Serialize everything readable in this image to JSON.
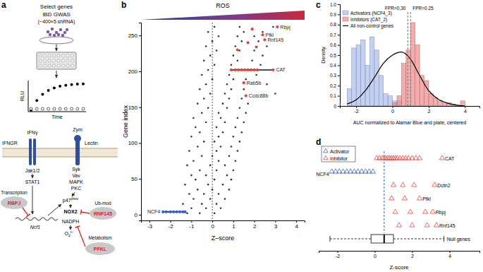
{
  "panel_labels": [
    "a",
    "b",
    "c",
    "d"
  ],
  "diagram": {
    "header": [
      "Select genes",
      "IBD GWAS",
      "(~400×5 shRNA)"
    ],
    "assay": {
      "y_label": "RLU",
      "x_label": "Time"
    },
    "ligands": [
      "IFNγ",
      "Zym"
    ],
    "receptors": [
      "IFNGR",
      "Lectin"
    ],
    "ifn_path": [
      "Jak1/2",
      "STAT1"
    ],
    "zym_path": [
      "Syk",
      "Vav",
      "MAPK",
      "PKC"
    ],
    "p47": {
      "text": "p47",
      "sup": "phox"
    },
    "enzyme": "NOX2",
    "cofactor": "NADPH",
    "product": {
      "text": "O",
      "sub": "2",
      "sup": "•−"
    },
    "gene": "Ncf1",
    "modulators": [
      {
        "process": "Transcription",
        "gene": "RBPJ"
      },
      {
        "process": "Ub-mod",
        "gene": "RNF145"
      },
      {
        "process": "Metabolism",
        "gene": "PFKL"
      }
    ]
  },
  "chart_data": [
    {
      "type": "scatter",
      "title": "ROS",
      "x_label": "Z–score",
      "y_label": "Gene index",
      "xlim": [
        -3.4,
        4.4
      ],
      "xticks": [
        -3,
        -2,
        -1,
        0,
        1,
        2,
        3,
        4
      ],
      "ylim": [
        -8,
        268
      ],
      "yticks": [
        0,
        50,
        100,
        150,
        200,
        250
      ],
      "reference_lines": [
        0
      ],
      "series": [
        {
          "color": "#333333",
          "marker": "circle",
          "x": [
            -1.2,
            -0.6,
            0.1,
            -1.0,
            -0.3,
            0.4,
            -1.4,
            -0.5,
            0.2,
            -0.9,
            -0.1,
            0.6,
            -1.1,
            -0.4,
            0.3,
            -0.7,
            0.0,
            0.8,
            -1.3,
            -0.2,
            0.5,
            -0.8,
            0.1,
            0.9,
            -1.0,
            -0.3,
            0.7,
            -0.6,
            0.2,
            1.0,
            -1.2,
            -0.1,
            0.6,
            -0.9,
            0.3,
            1.1,
            -0.5,
            0.0,
            0.8,
            -1.1,
            0.2,
            1.2,
            -0.7,
            0.4,
            0.9,
            -0.4,
            0.1,
            1.3,
            -1.0,
            0.3,
            1.0,
            -0.6,
            0.5,
            1.4,
            -0.8,
            0.2,
            1.1,
            -0.3,
            0.6,
            1.5,
            -0.9,
            0.4,
            1.2,
            -0.5,
            0.3,
            1.6,
            -0.2,
            0.7,
            1.3,
            -0.7,
            0.5,
            1.7,
            -0.4,
            0.8,
            1.4,
            -0.1,
            0.6,
            3.0,
            -0.6,
            0.9,
            1.5,
            -0.3,
            0.7,
            2.6,
            0.0,
            1.0,
            1.6,
            -0.5,
            0.8,
            2.1,
            -0.2,
            1.1,
            1.8,
            0.1,
            0.9,
            2.3,
            -0.4,
            1.2,
            1.9,
            -0.1,
            1.0,
            2.4,
            0.2,
            1.3,
            2.0,
            -0.3,
            1.1,
            2.6,
            0.0,
            1.4,
            2.2,
            0.3,
            1.2,
            2.0,
            -0.2,
            1.5,
            2.4,
            0.1,
            1.3,
            2.9
          ],
          "values": [
            2,
            2,
            2,
            9,
            9,
            9,
            15,
            15,
            15,
            22,
            22,
            22,
            29,
            29,
            29,
            35,
            35,
            35,
            42,
            42,
            42,
            49,
            49,
            49,
            55,
            55,
            55,
            62,
            62,
            62,
            69,
            69,
            69,
            75,
            75,
            75,
            82,
            82,
            82,
            89,
            89,
            89,
            95,
            95,
            95,
            102,
            102,
            102,
            109,
            109,
            109,
            115,
            115,
            115,
            122,
            122,
            122,
            129,
            129,
            129,
            135,
            135,
            135,
            142,
            142,
            142,
            149,
            149,
            149,
            155,
            155,
            155,
            162,
            162,
            162,
            169,
            169,
            169,
            175,
            175,
            175,
            182,
            182,
            182,
            189,
            189,
            189,
            195,
            195,
            195,
            202,
            202,
            202,
            209,
            209,
            209,
            215,
            215,
            215,
            222,
            222,
            222,
            229,
            229,
            229,
            235,
            235,
            235,
            242,
            242,
            242,
            249,
            249,
            249,
            255,
            255,
            255,
            262,
            262,
            262
          ]
        },
        {
          "color": "#e8413c",
          "marker": "circle",
          "x": [
            1.9,
            1.7,
            2.1,
            1.2
          ],
          "values": [
            259,
            240,
            234,
            230
          ]
        },
        {
          "name": "NCF4",
          "color": "#3a5fcd",
          "marker": "circle",
          "x": [
            -2.35,
            -2.2,
            -2.0,
            -1.85,
            -1.7,
            -1.55,
            -1.4,
            -1.3
          ],
          "values": [
            4,
            4,
            4,
            4,
            4,
            4,
            4,
            4
          ]
        },
        {
          "name": "CAT",
          "color": "#e8413c",
          "marker": "circle",
          "x": [
            0.9,
            1.1,
            1.25,
            1.4,
            1.55,
            1.7,
            1.85,
            2.0,
            2.15,
            2.9
          ],
          "values": [
            202,
            202,
            202,
            202,
            202,
            202,
            202,
            202,
            202,
            202
          ]
        },
        {
          "name": "Rbpj",
          "color": "#e8413c",
          "marker": "circle",
          "x": [
            3.1
          ],
          "values": [
            262
          ]
        },
        {
          "name": "Pfkl",
          "color": "#e8413c",
          "marker": "circle",
          "x": [
            2.4
          ],
          "values": [
            251
          ]
        },
        {
          "name": "Rnf145",
          "color": "#e8413c",
          "marker": "circle",
          "x": [
            2.5
          ],
          "values": [
            244
          ]
        },
        {
          "name": "Rab5b",
          "color": "#e8413c",
          "marker": "circle",
          "x": [
            1.5
          ],
          "values": [
            184
          ]
        },
        {
          "name": "Ccdc88b",
          "color": "#e8413c",
          "marker": "circle",
          "x": [
            1.6
          ],
          "values": [
            166
          ]
        }
      ]
    },
    {
      "type": "histogram",
      "x_label": "AUC normalized to Alamar Blue and plate, centered",
      "y_label": "Density",
      "xlim": [
        -2.9,
        4.8
      ],
      "xticks": [
        -2,
        0,
        2,
        4
      ],
      "ylim": [
        0,
        1
      ],
      "yticks": [
        0,
        0.1,
        0.2,
        0.3,
        0.4,
        0.5,
        0.6,
        0.7,
        0.8,
        0.9,
        {
          "value": 1,
          "label": "1.0"
        }
      ],
      "legend": "upper left",
      "annotations": [
        {
          "x": 0.85,
          "text": "FPR=0.30"
        },
        {
          "x": 1.0,
          "text": "FPR=0.25"
        }
      ],
      "series": [
        {
          "name": "Activators (NCF4_3)",
          "color": "#a9bcec",
          "bins": [
            -2.5,
            -2.25,
            -2,
            -1.75,
            -1.5,
            -1.25,
            -1,
            -0.75,
            -0.5,
            -0.25,
            0,
            0.25,
            0.5
          ],
          "values": [
            0.17,
            0.57,
            0.6,
            0.65,
            0.4,
            0.68,
            0.55,
            0.3,
            0.12,
            0.1,
            0.05,
            0.05
          ]
        },
        {
          "name": "Inhibitors (CAT_2)",
          "color": "#f08a8a",
          "bins": [
            0,
            0.25,
            0.5,
            0.75,
            1,
            1.25,
            1.5,
            1.75,
            2,
            2.25,
            2.5,
            2.75,
            3,
            3.25,
            3.5,
            3.75,
            4
          ],
          "values": [
            0.03,
            0.1,
            0.42,
            0.55,
            0.82,
            0.6,
            0.3,
            0.25,
            0.12,
            0.08,
            0.05,
            0.03,
            0.03,
            0.02,
            0,
            0.05
          ]
        },
        {
          "name": "All non-control genes",
          "type": "line",
          "color": "#000000",
          "x": [
            -2.5,
            -2,
            -1.5,
            -1,
            -0.5,
            0,
            0.5,
            1,
            1.5,
            2,
            2.5,
            3,
            3.5,
            4
          ],
          "values": [
            0.02,
            0.06,
            0.15,
            0.28,
            0.42,
            0.5,
            0.53,
            0.46,
            0.3,
            0.15,
            0.07,
            0.03,
            0.01,
            0
          ]
        }
      ]
    },
    {
      "type": "strip",
      "x_label": "Z-score",
      "xlim": [
        -3,
        5.6
      ],
      "xticks": [
        -2,
        0,
        2,
        4
      ],
      "legend": "upper left",
      "reference_lines": [
        0.5
      ],
      "series": [
        {
          "name": "Activator",
          "color": "#3a5fcd",
          "marker": "triangle"
        },
        {
          "name": "Inhibitor",
          "color": "#e8413c",
          "marker": "triangle"
        }
      ],
      "rows": [
        {
          "label": "CAT",
          "series": "Inhibitor",
          "x": [
            0.1,
            0.25,
            0.4,
            0.5,
            0.6,
            0.7,
            0.8,
            0.9,
            1.0,
            1.1,
            1.2,
            1.35,
            1.5,
            1.65,
            1.8,
            2.0,
            2.2,
            2.4,
            3.6
          ]
        },
        {
          "label": "NCF4",
          "series": "Activator",
          "x": [
            -2.3,
            -2.1,
            -1.9,
            -1.7,
            -1.5,
            -1.3,
            -1.1,
            -0.9,
            -0.7,
            -0.5,
            -0.3,
            -0.1
          ]
        },
        {
          "label": "Dctn2",
          "series": "Inhibitor",
          "x": [
            1.0,
            1.5,
            2.1,
            3.2
          ]
        },
        {
          "label": "Pfkl",
          "series": "Inhibitor",
          "x": [
            0.9,
            1.6,
            2.4
          ]
        },
        {
          "label": "Rbpj",
          "series": "Inhibitor",
          "x": [
            1.1,
            1.9,
            2.7,
            3.1
          ]
        },
        {
          "label": "Rnf145",
          "series": "Inhibitor",
          "x": [
            1.3,
            2.0,
            2.8,
            3.3
          ]
        }
      ],
      "box": {
        "label": "Null genes",
        "whisker_low": -2.4,
        "q1": -0.2,
        "median": 0.5,
        "q3": 1.0,
        "whisker_high": 3.7
      }
    }
  ]
}
